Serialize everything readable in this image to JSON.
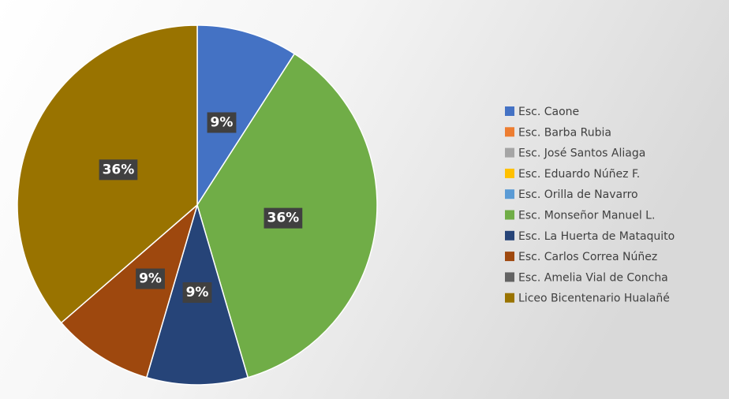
{
  "chart_data": {
    "type": "pie",
    "categories": [
      "Esc. Caone",
      "Esc. Barba Rubia",
      "Esc. José Santos Aliaga",
      "Esc. Eduardo Núñez F.",
      "Esc. Orilla de Navarro",
      "Esc. Monseñor Manuel L.",
      "Esc. La Huerta de Mataquito",
      "Esc. Carlos Correa Núñez",
      "Esc. Amelia Vial de Concha",
      "Liceo Bicentenario Hualañé"
    ],
    "values": [
      9,
      0,
      0,
      0,
      0,
      36,
      9,
      9,
      0,
      36
    ],
    "value_labels": [
      "9%",
      null,
      null,
      null,
      null,
      "36%",
      "9%",
      "9%",
      null,
      "36%"
    ],
    "colors": [
      "#4472c4",
      "#ed7d31",
      "#a5a5a5",
      "#ffc000",
      "#5b9bd5",
      "#70ad47",
      "#264478",
      "#9e480e",
      "#636363",
      "#997300"
    ],
    "legend": "right"
  }
}
